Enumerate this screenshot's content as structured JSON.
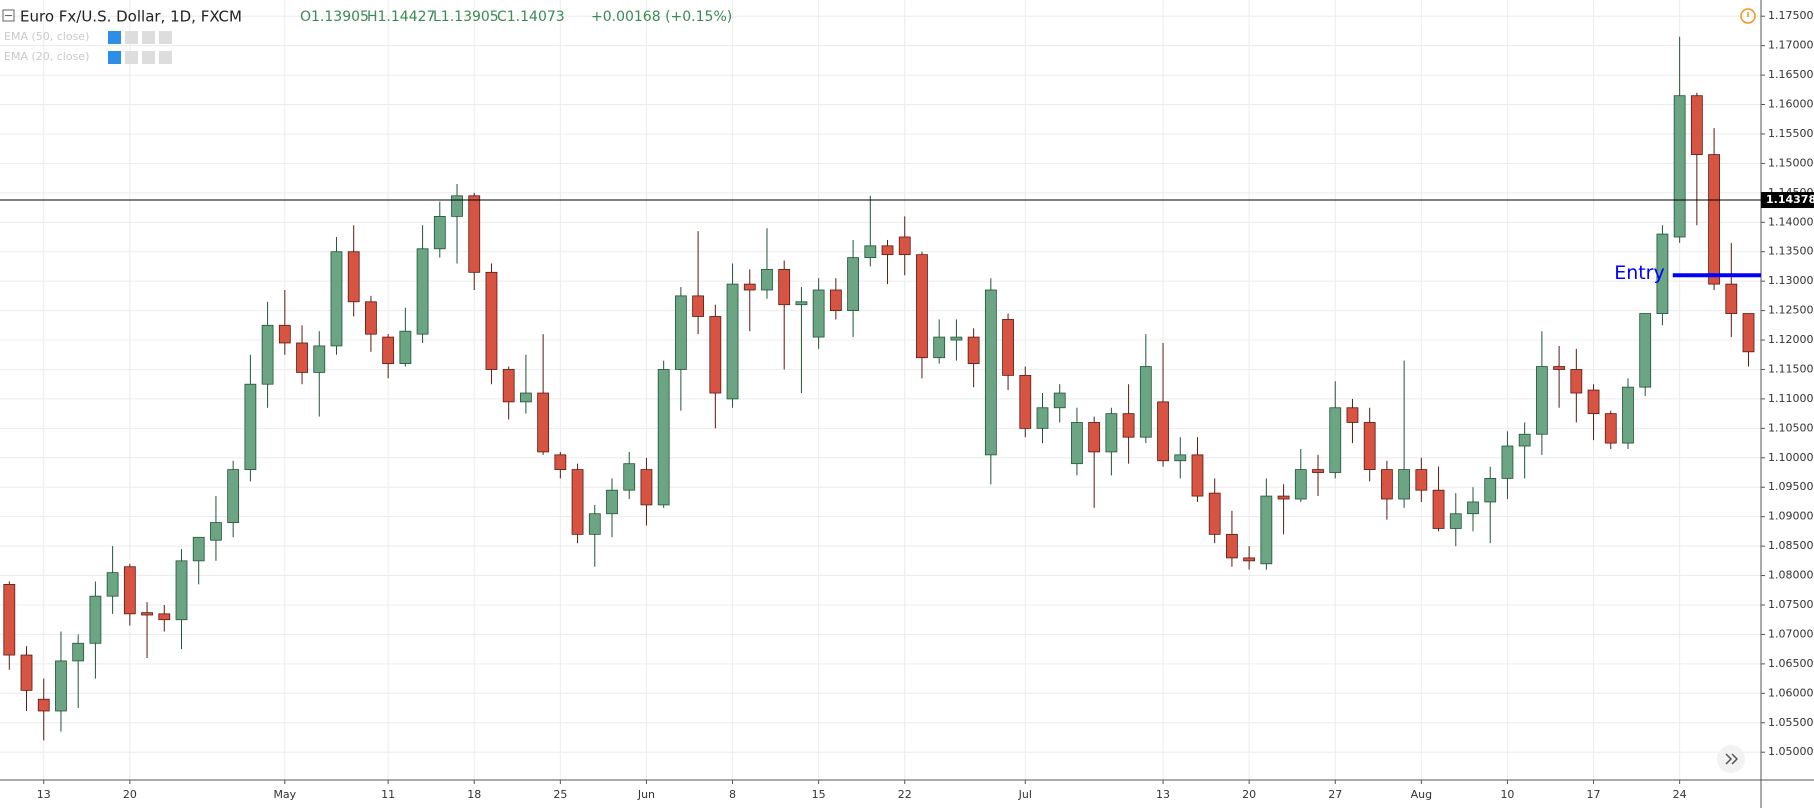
{
  "chart_data": {
    "type": "candlestick",
    "title": "Euro Fx/U.S. Dollar, 1D, FXCM",
    "header_values": [
      "O1.13905",
      "H1.14427",
      "L1.13905",
      "C1.14073",
      "+0.00168 (+0.15%)"
    ],
    "indicators": [
      "EMA (50, close)",
      "EMA (20, close)"
    ],
    "categories": [
      null,
      null,
      "13",
      null,
      null,
      null,
      null,
      "20",
      null,
      null,
      null,
      null,
      null,
      null,
      null,
      null,
      "May",
      null,
      null,
      null,
      null,
      null,
      "11",
      null,
      null,
      null,
      null,
      "18",
      null,
      null,
      null,
      null,
      "25",
      null,
      null,
      null,
      null,
      "Jun",
      null,
      null,
      null,
      null,
      "8",
      null,
      null,
      null,
      null,
      "15",
      null,
      null,
      null,
      null,
      "22",
      null,
      null,
      null,
      null,
      null,
      null,
      "Jul",
      null,
      null,
      null,
      null,
      null,
      null,
      null,
      "13",
      null,
      null,
      null,
      null,
      "20",
      null,
      null,
      null,
      null,
      "27",
      null,
      null,
      null,
      null,
      "Aug",
      null,
      null,
      null,
      null,
      "10",
      null,
      null,
      null,
      null,
      "17",
      null,
      null,
      null,
      null,
      "24",
      null,
      null,
      null,
      null
    ],
    "open": [
      1.0785,
      1.0665,
      1.059,
      1.057,
      1.0655,
      1.0685,
      1.0765,
      1.0815,
      1.0737,
      1.0735,
      1.0725,
      1.0825,
      1.086,
      1.089,
      1.098,
      1.1125,
      1.1225,
      1.1195,
      1.1145,
      1.119,
      1.135,
      1.1265,
      1.1205,
      1.116,
      1.121,
      1.1355,
      1.141,
      1.1445,
      1.1315,
      1.115,
      1.1095,
      1.111,
      1.1005,
      1.098,
      1.087,
      1.0905,
      1.0945,
      1.098,
      1.092,
      1.115,
      1.1275,
      1.124,
      1.11,
      1.1295,
      1.1285,
      1.132,
      1.126,
      1.1205,
      1.1285,
      1.125,
      1.134,
      1.136,
      1.1375,
      1.1345,
      1.117,
      1.12,
      1.1205,
      1.1005,
      1.1235,
      1.114,
      1.105,
      1.1085,
      1.099,
      1.106,
      1.101,
      1.1075,
      1.1035,
      1.1095,
      1.0995,
      1.1005,
      1.094,
      1.087,
      1.083,
      1.082,
      1.0935,
      1.093,
      1.098,
      1.0975,
      1.1085,
      1.106,
      1.098,
      1.093,
      1.098,
      1.0945,
      1.088,
      1.0905,
      1.0925,
      1.0965,
      1.102,
      1.104,
      1.1155,
      1.115,
      1.1115,
      1.1075,
      1.1025,
      1.112,
      1.1245,
      1.1375,
      1.1615,
      1.1515,
      1.1295,
      1.1245
    ],
    "high": [
      1.079,
      1.068,
      1.0625,
      1.0705,
      1.07,
      1.079,
      1.085,
      1.082,
      1.0755,
      1.075,
      1.0845,
      1.0865,
      1.0935,
      1.0995,
      1.1175,
      1.1265,
      1.1285,
      1.1225,
      1.1215,
      1.1375,
      1.1395,
      1.1275,
      1.121,
      1.1255,
      1.1395,
      1.1435,
      1.1465,
      1.145,
      1.133,
      1.1155,
      1.1175,
      1.121,
      1.101,
      1.099,
      1.092,
      1.0965,
      1.101,
      1.1,
      1.1165,
      1.129,
      1.1385,
      1.126,
      1.133,
      1.132,
      1.139,
      1.1335,
      1.129,
      1.1305,
      1.1305,
      1.137,
      1.1445,
      1.137,
      1.141,
      1.135,
      1.1235,
      1.1235,
      1.122,
      1.1305,
      1.1245,
      1.1155,
      1.111,
      1.1125,
      1.1085,
      1.107,
      1.1085,
      1.1125,
      1.121,
      1.1195,
      1.1035,
      1.1035,
      1.0965,
      1.091,
      1.085,
      1.0965,
      1.0955,
      1.1015,
      1.1005,
      1.113,
      1.11,
      1.1085,
      1.0995,
      1.1165,
      1.1,
      1.0985,
      1.094,
      1.095,
      1.0985,
      1.1045,
      1.106,
      1.1215,
      1.119,
      1.1185,
      1.1125,
      1.108,
      1.1135,
      1.1245,
      1.1395,
      1.1715,
      1.162,
      1.156,
      1.1365,
      1.1245
    ],
    "low": [
      1.064,
      1.057,
      1.052,
      1.0535,
      1.0575,
      1.0625,
      1.0735,
      1.0715,
      1.066,
      1.0705,
      1.0675,
      1.0785,
      1.0825,
      1.0865,
      1.096,
      1.1085,
      1.1175,
      1.1125,
      1.107,
      1.1175,
      1.124,
      1.118,
      1.1135,
      1.1155,
      1.1195,
      1.134,
      1.133,
      1.1285,
      1.1125,
      1.1065,
      1.1075,
      1.1005,
      1.0965,
      1.0855,
      1.0815,
      1.0865,
      1.093,
      1.0885,
      1.0915,
      1.108,
      1.121,
      1.105,
      1.1085,
      1.1215,
      1.127,
      1.115,
      1.111,
      1.1185,
      1.1235,
      1.1205,
      1.1325,
      1.1295,
      1.131,
      1.1135,
      1.116,
      1.1165,
      1.112,
      1.0955,
      1.1115,
      1.1035,
      1.1025,
      1.106,
      1.097,
      1.0915,
      1.097,
      1.099,
      1.1025,
      1.0985,
      1.0965,
      1.0925,
      1.0855,
      1.0815,
      1.081,
      1.081,
      1.087,
      1.0925,
      1.0935,
      1.0965,
      1.1025,
      1.096,
      1.0895,
      1.0915,
      1.0925,
      1.0875,
      1.085,
      1.0875,
      1.0855,
      1.093,
      1.0965,
      1.1005,
      1.1085,
      1.106,
      1.103,
      1.1015,
      1.1015,
      1.1105,
      1.1225,
      1.1365,
      1.1395,
      1.1285,
      1.1205,
      1.1155
    ],
    "close": [
      1.0665,
      1.0605,
      1.057,
      1.0655,
      1.0685,
      1.0765,
      1.0805,
      1.0735,
      1.0733,
      1.0725,
      1.0825,
      1.0865,
      1.089,
      1.098,
      1.1125,
      1.1225,
      1.1195,
      1.1145,
      1.119,
      1.135,
      1.1265,
      1.121,
      1.116,
      1.1215,
      1.1355,
      1.141,
      1.1445,
      1.1315,
      1.115,
      1.1095,
      1.111,
      1.101,
      1.098,
      1.087,
      1.0905,
      1.0945,
      1.099,
      1.092,
      1.115,
      1.1275,
      1.124,
      1.111,
      1.1295,
      1.1285,
      1.132,
      1.126,
      1.1265,
      1.1285,
      1.125,
      1.134,
      1.136,
      1.1345,
      1.1345,
      1.117,
      1.1205,
      1.1205,
      1.116,
      1.1285,
      1.114,
      1.105,
      1.1085,
      1.111,
      1.106,
      1.101,
      1.1075,
      1.1035,
      1.1155,
      1.0995,
      1.1005,
      1.0935,
      1.087,
      1.083,
      1.0825,
      1.0935,
      1.093,
      1.098,
      1.0975,
      1.1085,
      1.106,
      1.098,
      1.093,
      1.098,
      1.0945,
      1.088,
      1.0905,
      1.0925,
      1.0965,
      1.102,
      1.104,
      1.1155,
      1.115,
      1.111,
      1.1075,
      1.1025,
      1.112,
      1.1245,
      1.138,
      1.1615,
      1.1515,
      1.1295,
      1.1245,
      1.118
    ],
    "up_color": "#6ba583",
    "down_color": "#d75442",
    "up_border": "#225437",
    "down_border": "#5b1a13",
    "ylim": [
      1.0445,
      1.1765
    ],
    "yticks": [
      {
        "value": 1.05,
        "label": "1.05000"
      },
      {
        "value": 1.055,
        "label": "1.05500"
      },
      {
        "value": 1.06,
        "label": "1.06000"
      },
      {
        "value": 1.065,
        "label": "1.06500"
      },
      {
        "value": 1.07,
        "label": "1.07000"
      },
      {
        "value": 1.075,
        "label": "1.07500"
      },
      {
        "value": 1.08,
        "label": "1.08000"
      },
      {
        "value": 1.085,
        "label": "1.08500"
      },
      {
        "value": 1.09,
        "label": "1.09000"
      },
      {
        "value": 1.095,
        "label": "1.09500"
      },
      {
        "value": 1.1,
        "label": "1.10000"
      },
      {
        "value": 1.105,
        "label": "1.10500"
      },
      {
        "value": 1.11,
        "label": "1.11000"
      },
      {
        "value": 1.115,
        "label": "1.11500"
      },
      {
        "value": 1.12,
        "label": "1.12000"
      },
      {
        "value": 1.125,
        "label": "1.12500"
      },
      {
        "value": 1.13,
        "label": "1.13000"
      },
      {
        "value": 1.135,
        "label": "1.13500"
      },
      {
        "value": 1.14,
        "label": "1.14000"
      },
      {
        "value": 1.145,
        "label": "1.14500"
      },
      {
        "value": 1.15,
        "label": "1.15000"
      },
      {
        "value": 1.155,
        "label": "1.15500"
      },
      {
        "value": 1.16,
        "label": "1.16000"
      },
      {
        "value": 1.165,
        "label": "1.16500"
      },
      {
        "value": 1.17,
        "label": "1.17000"
      },
      {
        "value": 1.175,
        "label": "1.17500"
      }
    ],
    "grid": true,
    "price_line": 1.14378,
    "entry": {
      "text": "Entry",
      "value": 1.131,
      "color": "#0000ff"
    }
  }
}
